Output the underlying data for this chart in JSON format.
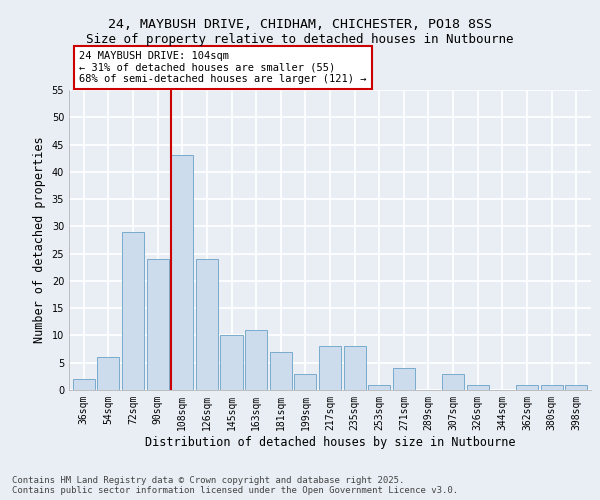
{
  "title_line1": "24, MAYBUSH DRIVE, CHIDHAM, CHICHESTER, PO18 8SS",
  "title_line2": "Size of property relative to detached houses in Nutbourne",
  "xlabel": "Distribution of detached houses by size in Nutbourne",
  "ylabel": "Number of detached properties",
  "categories": [
    "36sqm",
    "54sqm",
    "72sqm",
    "90sqm",
    "108sqm",
    "126sqm",
    "145sqm",
    "163sqm",
    "181sqm",
    "199sqm",
    "217sqm",
    "235sqm",
    "253sqm",
    "271sqm",
    "289sqm",
    "307sqm",
    "326sqm",
    "344sqm",
    "362sqm",
    "380sqm",
    "398sqm"
  ],
  "values": [
    2,
    6,
    29,
    24,
    43,
    24,
    10,
    11,
    7,
    3,
    8,
    8,
    1,
    4,
    0,
    3,
    1,
    0,
    1,
    1,
    1
  ],
  "bar_color": "#ccdcec",
  "bar_edge_color": "#7aabcc",
  "red_line_index": 4,
  "red_line_color": "#cc0000",
  "annotation_text": "24 MAYBUSH DRIVE: 104sqm\n← 31% of detached houses are smaller (55)\n68% of semi-detached houses are larger (121) →",
  "annotation_box_color": "#ffffff",
  "annotation_border_color": "#cc0000",
  "ylim": [
    0,
    55
  ],
  "yticks": [
    0,
    5,
    10,
    15,
    20,
    25,
    30,
    35,
    40,
    45,
    50,
    55
  ],
  "bg_color": "#e8eef4",
  "grid_color": "#ffffff",
  "footer_text": "Contains HM Land Registry data © Crown copyright and database right 2025.\nContains public sector information licensed under the Open Government Licence v3.0.",
  "title_fontsize": 9.5,
  "subtitle_fontsize": 9,
  "axis_label_fontsize": 8.5,
  "tick_fontsize": 7,
  "annotation_fontsize": 7.5,
  "footer_fontsize": 6.5
}
